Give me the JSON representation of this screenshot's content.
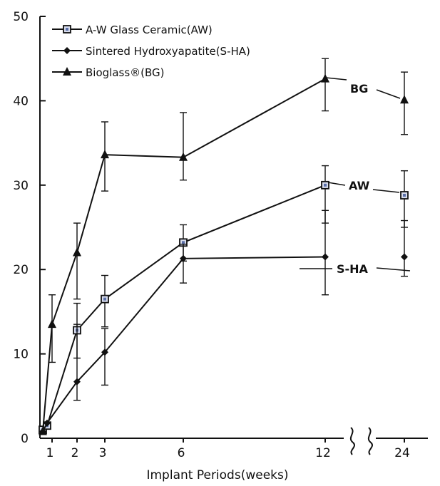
{
  "chart_data": {
    "type": "line",
    "title": "",
    "xlabel": "Implant Periods(weeks)",
    "ylabel": "",
    "ylim": [
      0,
      50
    ],
    "y_ticks": [
      0,
      10,
      20,
      30,
      40,
      50
    ],
    "x_ticks": [
      1,
      2,
      3,
      6,
      12,
      24
    ],
    "x_axis_break": "between 12 and 24",
    "grid": false,
    "legend_position": "top-left",
    "series": [
      {
        "key": "AW",
        "name": "A-W Glass Ceramic(AW)",
        "marker": "square",
        "x": [
          0,
          0.5,
          2,
          3,
          6,
          12,
          24
        ],
        "y": [
          1.0,
          1.5,
          12.8,
          16.5,
          23.2,
          30.0,
          28.8
        ],
        "err_low": [
          null,
          null,
          9.5,
          13.2,
          21.0,
          25.5,
          25.0
        ],
        "err_high": [
          null,
          null,
          16.0,
          19.3,
          25.3,
          32.3,
          31.7
        ]
      },
      {
        "key": "SHA",
        "name": "Sintered Hydroxyapatite(S-HA)",
        "marker": "diamond",
        "x": [
          0,
          0.5,
          1,
          2,
          3,
          6,
          12,
          24
        ],
        "y": [
          0.8,
          1.8,
          null,
          6.7,
          10.2,
          21.3,
          21.5,
          21.5
        ],
        "err_low": [
          null,
          null,
          null,
          4.5,
          6.3,
          18.4,
          17.0,
          19.2
        ],
        "err_high": [
          null,
          null,
          null,
          13.5,
          13.0,
          23.0,
          27.0,
          25.8
        ]
      },
      {
        "key": "BG",
        "name": "Bioglass®(BG)",
        "marker": "triangle",
        "x": [
          0,
          1,
          2,
          3,
          6,
          12,
          24
        ],
        "y": [
          0.8,
          13.5,
          22.0,
          33.6,
          33.3,
          42.6,
          40.1
        ],
        "err_low": [
          null,
          9.0,
          16.5,
          29.3,
          30.6,
          38.8,
          36.0
        ],
        "err_high": [
          null,
          17.0,
          25.5,
          37.5,
          38.6,
          45.0,
          43.4
        ]
      }
    ],
    "annotations": [
      {
        "text": "BG",
        "series": "BG"
      },
      {
        "text": "AW",
        "series": "AW"
      },
      {
        "text": "S-HA",
        "series": "SHA"
      }
    ]
  }
}
